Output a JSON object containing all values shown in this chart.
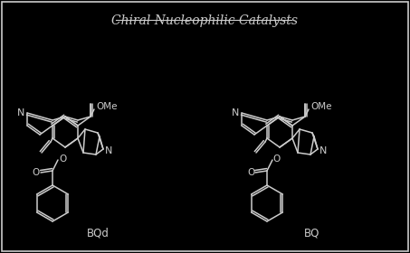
{
  "title": "Chiral Nucleophilic Catalysts",
  "bg_color": "#000000",
  "line_color": "#cccccc",
  "text_color": "#cccccc",
  "label_left": "BQd",
  "label_right": "BQ",
  "fig_width": 4.53,
  "fig_height": 2.8,
  "dpi": 100
}
